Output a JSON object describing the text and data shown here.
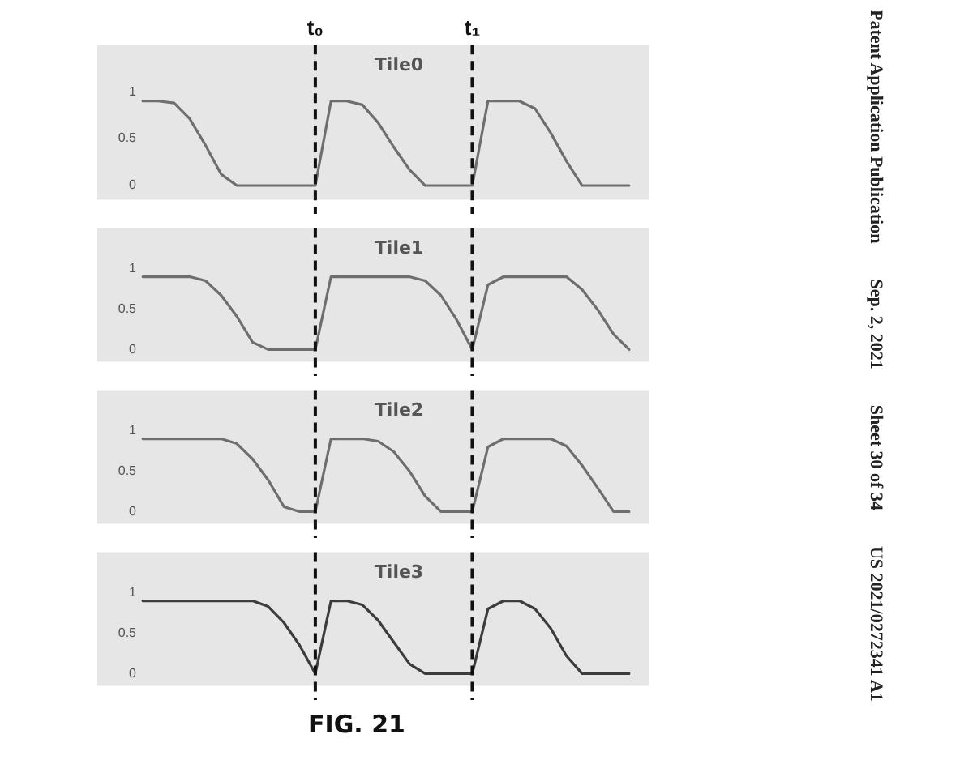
{
  "chart_data": [
    {
      "type": "line",
      "title": "Tile0",
      "categories": [
        null,
        null,
        null,
        null,
        null,
        null,
        null,
        null,
        null,
        null,
        null,
        "t₀",
        null,
        null,
        null,
        null,
        null,
        null,
        null,
        null,
        null,
        "t₁",
        null,
        null,
        null,
        null,
        null,
        null,
        null,
        null,
        null,
        null
      ],
      "ylim": [
        -0.15,
        1.5
      ],
      "yticks": [
        0,
        0.5,
        1
      ],
      "grid": false,
      "legend": false,
      "marker": "none",
      "line_style": "solid",
      "ref_lines": [
        {
          "axis": "x",
          "value": "t₀",
          "color": "#111111",
          "line_style": "dashed"
        },
        {
          "axis": "x",
          "value": "t₁",
          "color": "#111111",
          "line_style": "dashed"
        }
      ],
      "annotations": [
        "Patent Application Publication",
        "Sep. 2, 2021",
        "Sheet 30 of 34",
        "US 2021/0272341 A1"
      ],
      "series": [
        {
          "color": "#6e6e6e",
          "values": [
            0.9,
            0.9,
            0.88,
            0.71,
            0.43,
            0.12,
            0,
            0,
            0,
            0,
            0,
            0,
            0.9,
            0.9,
            0.86,
            0.67,
            0.41,
            0.17,
            0,
            0,
            0,
            0,
            0.9,
            0.9,
            0.9,
            0.82,
            0.56,
            0.26,
            0,
            0,
            0,
            0
          ]
        }
      ]
    },
    {
      "type": "line",
      "title": "Tile1",
      "categories": [
        null,
        null,
        null,
        null,
        null,
        null,
        null,
        null,
        null,
        null,
        null,
        "t₀",
        null,
        null,
        null,
        null,
        null,
        null,
        null,
        null,
        null,
        "t₁",
        null,
        null,
        null,
        null,
        null,
        null,
        null,
        null,
        null,
        null
      ],
      "ylim": [
        -0.15,
        1.5
      ],
      "yticks": [
        0,
        0.5,
        1
      ],
      "tick_labels": "y",
      "grid": false,
      "legend": false,
      "marker": "none",
      "line_style": "solid",
      "ref_lines": [
        {
          "axis": "x",
          "value": "t₀",
          "color": "#111111",
          "line_style": "dashed"
        },
        {
          "axis": "x",
          "value": "t₁",
          "color": "#111111",
          "line_style": "dashed"
        }
      ],
      "series": [
        {
          "color": "#6e6e6e",
          "values": [
            0.9,
            0.9,
            0.9,
            0.9,
            0.85,
            0.67,
            0.41,
            0.09,
            0,
            0,
            0,
            0,
            0.9,
            0.9,
            0.9,
            0.9,
            0.9,
            0.9,
            0.85,
            0.67,
            0.37,
            0,
            0.8,
            0.9,
            0.9,
            0.9,
            0.9,
            0.9,
            0.74,
            0.49,
            0.19,
            0
          ]
        }
      ]
    },
    {
      "type": "line",
      "title": "Tile2",
      "categories": [
        null,
        null,
        null,
        null,
        null,
        null,
        null,
        null,
        null,
        null,
        null,
        "t₀",
        null,
        null,
        null,
        null,
        null,
        null,
        null,
        null,
        null,
        "t₁",
        null,
        null,
        null,
        null,
        null,
        null,
        null,
        null,
        null,
        null
      ],
      "ylim": [
        -0.15,
        1.5
      ],
      "yticks": [
        0,
        0.5,
        1
      ],
      "tick_labels": "y",
      "grid": false,
      "legend": false,
      "marker": "none",
      "line_style": "solid",
      "ref_lines": [
        {
          "axis": "x",
          "value": "t₀",
          "color": "#111111",
          "line_style": "dashed"
        },
        {
          "axis": "x",
          "value": "t₁",
          "color": "#111111",
          "line_style": "dashed"
        }
      ],
      "series": [
        {
          "color": "#6e6e6e",
          "values": [
            0.9,
            0.9,
            0.9,
            0.9,
            0.9,
            0.9,
            0.84,
            0.65,
            0.39,
            0.06,
            0,
            0,
            0.9,
            0.9,
            0.9,
            0.87,
            0.74,
            0.5,
            0.19,
            0,
            0,
            0,
            0.8,
            0.9,
            0.9,
            0.9,
            0.9,
            0.81,
            0.57,
            0.29,
            0,
            0
          ]
        }
      ]
    },
    {
      "type": "line",
      "title": "Tile3",
      "categories": [
        null,
        null,
        null,
        null,
        null,
        null,
        null,
        null,
        null,
        null,
        null,
        "t₀",
        null,
        null,
        null,
        null,
        null,
        null,
        null,
        null,
        null,
        "t₁",
        null,
        null,
        null,
        null,
        null,
        null,
        null,
        null,
        null,
        null
      ],
      "ylim": [
        -0.15,
        1.5
      ],
      "yticks": [
        0,
        0.5,
        1
      ],
      "tick_labels": "y",
      "grid": false,
      "legend": false,
      "marker": "none",
      "line_style": "solid",
      "ref_lines": [
        {
          "axis": "x",
          "value": "t₀",
          "color": "#111111",
          "line_style": "dashed"
        },
        {
          "axis": "x",
          "value": "t₁",
          "color": "#111111",
          "line_style": "dashed"
        }
      ],
      "annotations": [
        "FIG. 21"
      ],
      "series": [
        {
          "color": "#3c3c3c",
          "values": [
            0.9,
            0.9,
            0.9,
            0.9,
            0.9,
            0.9,
            0.9,
            0.9,
            0.83,
            0.63,
            0.35,
            0,
            0.9,
            0.9,
            0.85,
            0.66,
            0.39,
            0.12,
            0,
            0,
            0,
            0,
            0.8,
            0.9,
            0.9,
            0.8,
            0.56,
            0.22,
            0,
            0,
            0,
            0
          ]
        }
      ]
    }
  ]
}
